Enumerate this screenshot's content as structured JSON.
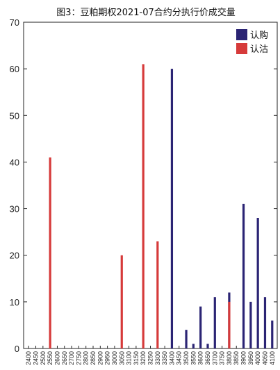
{
  "chart_data": {
    "type": "bar",
    "title": "图3：豆粕期权2021-07合约分执行价成交量",
    "xlabel": "",
    "ylabel": "",
    "ylim": [
      0,
      70
    ],
    "yticks": [
      0,
      10,
      20,
      30,
      40,
      50,
      60,
      70
    ],
    "grid": false,
    "legend_position": "top-right",
    "categories": [
      "2400",
      "2450",
      "2500",
      "2550",
      "2600",
      "2650",
      "2700",
      "2750",
      "2800",
      "2850",
      "2900",
      "2950",
      "3000",
      "3050",
      "3100",
      "3150",
      "3200",
      "3250",
      "3300",
      "3350",
      "3400",
      "3450",
      "3500",
      "3550",
      "3600",
      "3650",
      "3700",
      "3750",
      "3800",
      "3850",
      "3900",
      "3950",
      "4000",
      "4050",
      "4100"
    ],
    "series": [
      {
        "name": "认购",
        "color": "#2b2474",
        "values": [
          0,
          0,
          0,
          0,
          0,
          0,
          0,
          0,
          0,
          0,
          0,
          0,
          0,
          0,
          0,
          0,
          0,
          0,
          0,
          0,
          60,
          0,
          4,
          1,
          9,
          1,
          11,
          0,
          12,
          0,
          31,
          10,
          28,
          11,
          6
        ]
      },
      {
        "name": "认沽",
        "color": "#d63a3a",
        "values": [
          0,
          0,
          0,
          41,
          0,
          0,
          0,
          0,
          0,
          0,
          0,
          0,
          0,
          20,
          0,
          0,
          61,
          0,
          23,
          0,
          0,
          0,
          0,
          0,
          0,
          0,
          0,
          0,
          10,
          0,
          0,
          0,
          0,
          0,
          0
        ]
      }
    ]
  }
}
